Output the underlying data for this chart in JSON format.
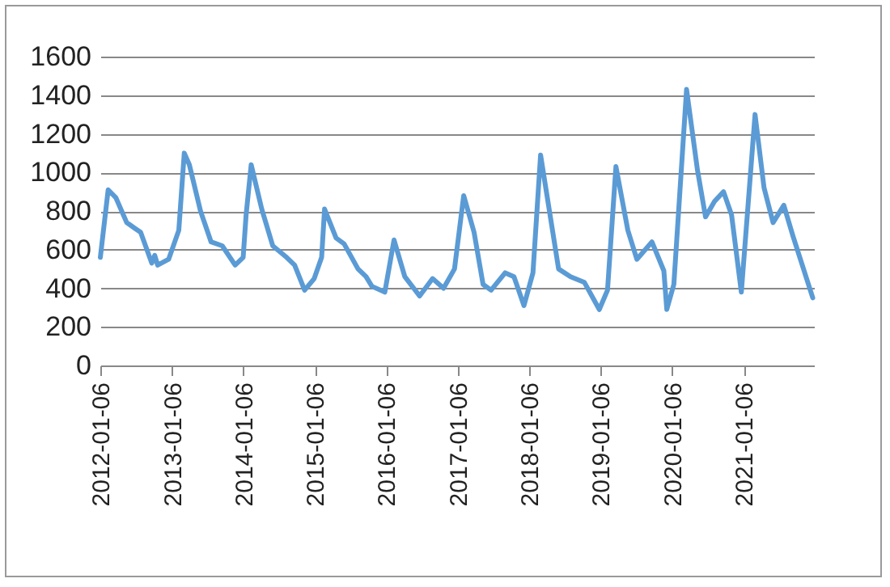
{
  "chart_data": {
    "type": "line",
    "x": [
      "2012-01-06",
      "2012-02-15",
      "2012-03-25",
      "2012-05-20",
      "2012-07-01",
      "2012-07-30",
      "2012-09-25",
      "2012-10-10",
      "2012-10-25",
      "2012-12-20",
      "2013-02-10",
      "2013-03-10",
      "2013-04-05",
      "2013-06-01",
      "2013-07-25",
      "2013-09-20",
      "2013-11-25",
      "2014-01-05",
      "2014-01-20",
      "2014-02-15",
      "2014-04-10",
      "2014-06-05",
      "2014-08-15",
      "2014-09-25",
      "2014-11-15",
      "2015-01-03",
      "2015-02-10",
      "2015-02-25",
      "2015-04-25",
      "2015-06-05",
      "2015-08-15",
      "2015-09-25",
      "2015-10-25",
      "2015-12-30",
      "2016-02-15",
      "2016-04-10",
      "2016-06-25",
      "2016-08-30",
      "2016-10-25",
      "2016-12-20",
      "2017-02-05",
      "2017-03-30",
      "2017-05-15",
      "2017-06-25",
      "2017-09-05",
      "2017-10-20",
      "2017-12-10",
      "2018-01-25",
      "2018-03-05",
      "2018-06-05",
      "2018-08-05",
      "2018-10-15",
      "2018-12-30",
      "2019-02-10",
      "2019-03-25",
      "2019-05-25",
      "2019-07-10",
      "2019-09-25",
      "2019-11-25",
      "2019-12-10",
      "2020-01-15",
      "2020-03-20",
      "2020-05-15",
      "2020-06-25",
      "2020-08-10",
      "2020-09-25",
      "2020-11-05",
      "2020-12-25",
      "2021-03-05",
      "2021-04-20",
      "2021-06-05",
      "2021-07-30",
      "2021-09-15",
      "2021-12-25"
    ],
    "series": [
      {
        "color": "#5b9bd5",
        "values": [
          560,
          910,
          870,
          740,
          710,
          690,
          530,
          570,
          520,
          550,
          700,
          1100,
          1040,
          800,
          640,
          620,
          520,
          560,
          780,
          1040,
          810,
          620,
          560,
          520,
          390,
          450,
          560,
          810,
          660,
          630,
          500,
          460,
          410,
          380,
          650,
          460,
          360,
          450,
          400,
          500,
          880,
          690,
          420,
          390,
          480,
          460,
          310,
          480,
          1090,
          500,
          460,
          430,
          290,
          390,
          1030,
          700,
          550,
          640,
          490,
          290,
          420,
          1430,
          1010,
          770,
          850,
          900,
          780,
          380,
          1300,
          920,
          740,
          830,
          670,
          350
        ]
      }
    ],
    "xlim": [
      "2012-01-06",
      "2021-12-31"
    ],
    "xticks": [
      "2012-01-06",
      "2013-01-06",
      "2014-01-06",
      "2015-01-06",
      "2016-01-06",
      "2017-01-06",
      "2018-01-06",
      "2019-01-06",
      "2020-01-06",
      "2021-01-06"
    ],
    "ylim": [
      0,
      1600
    ],
    "yticks": [
      0,
      200,
      400,
      600,
      800,
      1000,
      1200,
      1400,
      1600
    ],
    "grid": "y",
    "legend": false,
    "marker": "none",
    "line_style": "solid"
  }
}
